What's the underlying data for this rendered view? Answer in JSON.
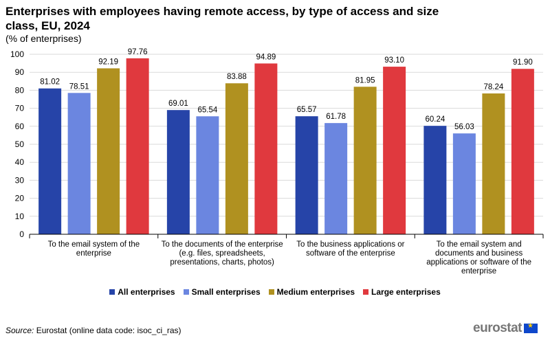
{
  "title": "Enterprises with employees having remote access, by type of access and size class, EU, 2024",
  "subtitle": "(% of enterprises)",
  "source_label": "Source:",
  "source_text": "Eurostat (online data code: isoc_ci_ras)",
  "logo": "eurostat",
  "chart_data": {
    "type": "bar",
    "categories": [
      "To the email system of the enterprise",
      "To the documents of the enterprise (e.g. files, spreadsheets, presentations, charts, photos)",
      "To the business applications or software of the enterprise",
      "To the email system and documents and business applications or software of the enterprise"
    ],
    "series": [
      {
        "name": "All enterprises",
        "color": "#2644a8",
        "values": [
          81.02,
          69.01,
          65.57,
          60.24
        ]
      },
      {
        "name": "Small enterprises",
        "color": "#6b86e0",
        "values": [
          78.51,
          65.54,
          61.78,
          56.03
        ]
      },
      {
        "name": "Medium enterprises",
        "color": "#b09120",
        "values": [
          92.19,
          83.88,
          81.95,
          78.24
        ]
      },
      {
        "name": "Large enterprises",
        "color": "#e0393e",
        "values": [
          97.76,
          94.89,
          93.1,
          91.9
        ]
      }
    ],
    "ylim": [
      0,
      100
    ],
    "yticks": [
      0,
      10,
      20,
      30,
      40,
      50,
      60,
      70,
      80,
      90,
      100
    ],
    "grid": true,
    "legend": "bottom"
  }
}
